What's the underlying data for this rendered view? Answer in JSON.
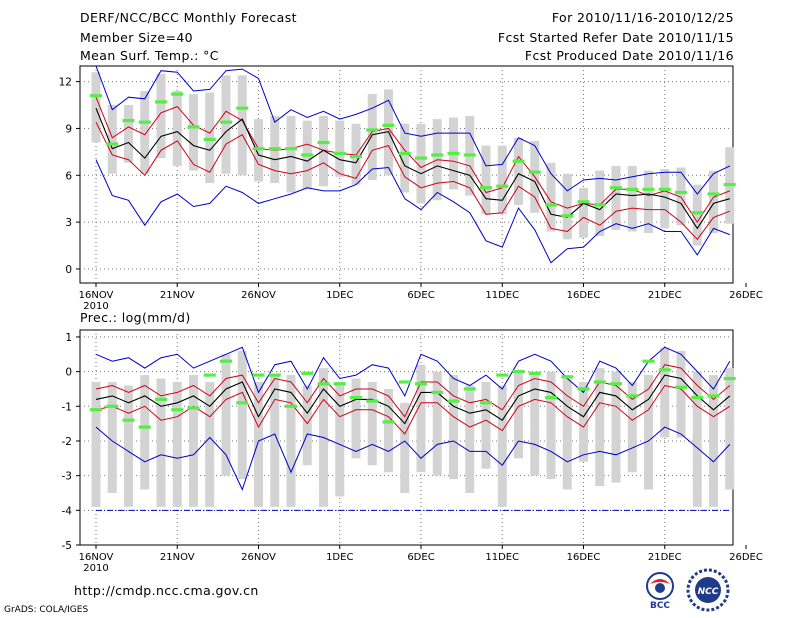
{
  "header": {
    "title": "DERF/NCC/BCC Monthly Forecast",
    "member_size": "Member Size=40",
    "variable": "Mean Surf. Temp.: °C",
    "forecast_period": "For 2010/11/16-2010/12/25",
    "started_refer_date": "Fcst Started Refer Date 2010/11/15",
    "produced_date": "Fcst Produced Date 2010/11/16"
  },
  "footer": {
    "url": "http://cmdp.ncc.cma.gov.cn",
    "grads_credit": "GrADS: COLA/IGES",
    "logo_left_text": "BCC",
    "logo_right_text": "NCC"
  },
  "colors": {
    "median": "#000000",
    "quartile": "#d0021b",
    "extreme": "#0000cc",
    "box": "#d3d3d3",
    "climatology": "#55ee44",
    "grid": "#777777"
  },
  "chart_data": [
    {
      "type": "box-ensemble",
      "title": "Mean Surf. Temp.: °C",
      "xlabel": "",
      "ylabel": "",
      "x_tick_labels": [
        "16NOV",
        "21NOV",
        "26NOV",
        "1DEC",
        "6DEC",
        "11DEC",
        "16DEC",
        "21DEC",
        "26DEC"
      ],
      "year_label": "2010",
      "ylim": [
        -0.9,
        13
      ],
      "y_ticks": [
        0,
        3,
        6,
        9,
        12
      ],
      "grid": true,
      "days": 40,
      "series": [
        {
          "name": "box_top",
          "values": [
            12.6,
            10.5,
            10.5,
            11.4,
            12.5,
            11.4,
            11.2,
            11.3,
            12.4,
            12.4,
            9.6,
            9.8,
            9.8,
            9.5,
            9.8,
            9.5,
            9.3,
            11.2,
            11.5,
            9.3,
            9.3,
            9.6,
            9.7,
            9.8,
            7.9,
            7.9,
            8.4,
            8.2,
            6.8,
            6.1,
            5.2,
            6.3,
            6.6,
            6.6,
            6.3,
            6.4,
            6.5,
            5.4,
            6.3,
            7.8
          ]
        },
        {
          "name": "box_bottom",
          "values": [
            8.1,
            6.1,
            6.8,
            6.1,
            7.1,
            6.6,
            6.3,
            5.5,
            6.1,
            6.0,
            5.6,
            5.5,
            4.9,
            5.1,
            5.3,
            5.9,
            5.4,
            5.7,
            6.0,
            4.9,
            4.2,
            4.4,
            5.1,
            4.7,
            3.5,
            3.5,
            4.1,
            3.6,
            2.4,
            1.9,
            2.0,
            2.1,
            2.5,
            2.4,
            2.3,
            2.6,
            2.8,
            1.5,
            2.3,
            2.9
          ]
        },
        {
          "name": "max",
          "values": [
            13.0,
            10.2,
            11.0,
            10.9,
            12.7,
            12.6,
            11.4,
            11.5,
            12.7,
            12.8,
            12.2,
            9.4,
            10.2,
            9.7,
            10.1,
            9.6,
            9.9,
            10.3,
            10.8,
            8.7,
            8.5,
            8.7,
            8.7,
            8.7,
            6.6,
            6.7,
            8.4,
            7.9,
            6.1,
            5.0,
            5.7,
            5.8,
            5.7,
            5.9,
            6.1,
            6.2,
            6.2,
            4.8,
            6.1,
            6.6
          ]
        },
        {
          "name": "upper_quartile",
          "values": [
            11.0,
            8.4,
            9.1,
            8.6,
            10.0,
            10.4,
            9.2,
            8.7,
            10.1,
            9.5,
            7.7,
            7.6,
            7.7,
            8.0,
            7.6,
            7.4,
            7.3,
            8.8,
            9.0,
            7.6,
            6.5,
            7.0,
            6.9,
            6.6,
            4.9,
            5.2,
            7.2,
            5.9,
            4.3,
            3.9,
            4.2,
            4.1,
            5.1,
            5.1,
            4.7,
            5.0,
            4.6,
            3.0,
            4.6,
            5.0
          ]
        },
        {
          "name": "median",
          "values": [
            10.3,
            7.7,
            8.1,
            7.1,
            8.5,
            8.8,
            7.9,
            7.6,
            8.8,
            9.6,
            7.3,
            7.0,
            7.2,
            6.9,
            7.6,
            7.0,
            6.8,
            8.6,
            8.8,
            6.6,
            6.1,
            6.6,
            6.3,
            6.0,
            4.5,
            4.4,
            6.1,
            5.6,
            3.5,
            3.3,
            4.2,
            3.8,
            4.8,
            4.7,
            4.8,
            4.6,
            4.2,
            2.6,
            4.2,
            4.5
          ]
        },
        {
          "name": "lower_quartile",
          "values": [
            9.4,
            7.3,
            7.0,
            6.0,
            7.6,
            8.2,
            6.7,
            6.2,
            8.0,
            8.6,
            6.7,
            6.3,
            6.1,
            6.3,
            6.8,
            6.1,
            5.8,
            7.6,
            7.9,
            5.9,
            5.2,
            5.5,
            5.6,
            5.2,
            3.5,
            3.6,
            5.3,
            4.6,
            2.6,
            2.4,
            3.3,
            2.8,
            3.7,
            3.9,
            3.8,
            3.8,
            3.0,
            1.9,
            3.3,
            3.7
          ]
        },
        {
          "name": "min",
          "values": [
            7.0,
            4.7,
            4.4,
            2.8,
            4.3,
            4.8,
            4.0,
            4.2,
            5.3,
            4.9,
            4.2,
            4.5,
            4.8,
            5.2,
            5.0,
            5.0,
            5.4,
            6.4,
            6.5,
            4.5,
            3.8,
            4.9,
            4.3,
            3.6,
            1.8,
            1.4,
            3.9,
            2.5,
            0.4,
            1.3,
            1.4,
            2.4,
            2.9,
            2.6,
            2.9,
            2.4,
            2.4,
            0.9,
            2.6,
            2.2
          ]
        },
        {
          "name": "climatology",
          "values": [
            11.1,
            8.0,
            9.5,
            9.4,
            10.7,
            11.2,
            9.1,
            8.3,
            9.4,
            10.3,
            7.7,
            7.7,
            7.7,
            7.3,
            8.1,
            7.4,
            7.2,
            8.9,
            9.2,
            7.4,
            7.1,
            7.3,
            7.4,
            7.3,
            5.2,
            5.3,
            6.9,
            6.2,
            4.1,
            3.4,
            4.3,
            4.1,
            5.2,
            5.1,
            5.1,
            5.1,
            4.9,
            3.6,
            4.8,
            5.4
          ]
        }
      ]
    },
    {
      "type": "box-ensemble",
      "title": "Prec.: log(mm/d)",
      "xlabel": "",
      "ylabel": "",
      "x_tick_labels": [
        "16NOV",
        "21NOV",
        "26NOV",
        "1DEC",
        "6DEC",
        "11DEC",
        "16DEC",
        "21DEC",
        "26DEC"
      ],
      "year_label": "2010",
      "ylim": [
        -5,
        1.2
      ],
      "y_ticks": [
        -5,
        -4,
        -3,
        -2,
        -1,
        0,
        1
      ],
      "baseline": -4,
      "grid": true,
      "days": 40,
      "series": [
        {
          "name": "box_top",
          "values": [
            -0.3,
            -0.3,
            -0.4,
            -0.1,
            -0.2,
            -0.3,
            -0.1,
            -0.3,
            0.5,
            0.6,
            -0.3,
            -0.1,
            -0.1,
            -0.4,
            0.1,
            -0.3,
            -0.2,
            -0.3,
            -0.5,
            -0.9,
            0.2,
            0.0,
            -0.1,
            -0.4,
            -0.3,
            -0.4,
            0.0,
            0.0,
            0.0,
            -0.1,
            -0.3,
            0.1,
            0.0,
            -0.3,
            -0.1,
            0.7,
            0.6,
            0.0,
            -0.1,
            0.1
          ]
        },
        {
          "name": "box_bottom",
          "values": [
            -3.9,
            -3.5,
            -3.9,
            -3.4,
            -3.9,
            -3.9,
            -3.9,
            -3.9,
            -3.0,
            -3.1,
            -3.9,
            -3.9,
            -3.9,
            -2.7,
            -3.9,
            -3.6,
            -2.5,
            -2.7,
            -2.9,
            -3.5,
            -2.9,
            -3.0,
            -3.1,
            -3.5,
            -2.8,
            -3.9,
            -2.5,
            -3.0,
            -3.1,
            -3.4,
            -2.6,
            -3.3,
            -3.2,
            -2.9,
            -3.4,
            -1.9,
            -1.9,
            -3.9,
            -3.9,
            -3.4
          ]
        },
        {
          "name": "max",
          "values": [
            0.5,
            0.3,
            0.4,
            0.1,
            0.4,
            0.5,
            0.1,
            0.3,
            0.5,
            0.7,
            -0.6,
            0.2,
            0.3,
            -0.5,
            0.4,
            -0.2,
            -0.1,
            0.2,
            0.1,
            -0.7,
            0.5,
            0.3,
            -0.2,
            -0.4,
            -0.1,
            -0.5,
            0.3,
            0.5,
            0.3,
            -0.2,
            -0.6,
            0.3,
            0.1,
            -0.4,
            0.3,
            0.7,
            0.5,
            0.0,
            -0.5,
            0.3
          ]
        },
        {
          "name": "upper_quartile",
          "values": [
            -0.5,
            -0.4,
            -0.6,
            -0.4,
            -0.7,
            -0.6,
            -0.4,
            -0.7,
            -0.2,
            -0.1,
            -0.9,
            -0.2,
            -0.3,
            -0.9,
            -0.2,
            -0.7,
            -0.5,
            -0.5,
            -0.7,
            -1.3,
            -0.3,
            -0.3,
            -0.7,
            -0.9,
            -0.8,
            -1.1,
            -0.4,
            -0.2,
            -0.3,
            -0.7,
            -1.0,
            -0.3,
            -0.4,
            -0.8,
            -0.5,
            0.2,
            0.1,
            -0.4,
            -0.8,
            -0.4
          ]
        },
        {
          "name": "median",
          "values": [
            -0.8,
            -0.7,
            -0.9,
            -0.7,
            -1.0,
            -0.9,
            -0.7,
            -1.0,
            -0.5,
            -0.3,
            -1.3,
            -0.5,
            -0.6,
            -1.2,
            -0.5,
            -1.0,
            -0.8,
            -0.8,
            -1.0,
            -1.5,
            -0.6,
            -0.6,
            -1.0,
            -1.2,
            -1.1,
            -1.4,
            -0.7,
            -0.5,
            -0.6,
            -1.0,
            -1.3,
            -0.6,
            -0.7,
            -1.1,
            -0.8,
            -0.1,
            -0.2,
            -0.7,
            -1.1,
            -0.7
          ]
        },
        {
          "name": "lower_quartile",
          "values": [
            -1.1,
            -1.0,
            -1.2,
            -1.0,
            -1.4,
            -1.3,
            -1.0,
            -1.3,
            -0.8,
            -0.6,
            -1.6,
            -0.8,
            -0.9,
            -1.5,
            -0.8,
            -1.3,
            -1.1,
            -1.1,
            -1.3,
            -1.8,
            -0.9,
            -0.9,
            -1.3,
            -1.6,
            -1.4,
            -1.7,
            -1.0,
            -0.8,
            -0.9,
            -1.3,
            -1.6,
            -0.9,
            -1.0,
            -1.4,
            -1.1,
            -0.4,
            -0.5,
            -1.0,
            -1.3,
            -1.0
          ]
        },
        {
          "name": "min",
          "values": [
            -1.6,
            -2.0,
            -2.3,
            -2.6,
            -2.4,
            -2.5,
            -2.4,
            -1.9,
            -2.4,
            -3.4,
            -2.0,
            -1.8,
            -2.9,
            -1.8,
            -1.9,
            -2.1,
            -2.3,
            -2.1,
            -2.3,
            -2.0,
            -2.5,
            -2.1,
            -2.0,
            -2.3,
            -2.3,
            -2.7,
            -2.0,
            -2.1,
            -2.3,
            -2.6,
            -2.4,
            -2.3,
            -2.4,
            -2.2,
            -2.0,
            -1.6,
            -1.8,
            -2.2,
            -2.6,
            -2.1
          ]
        },
        {
          "name": "climatology",
          "values": [
            -1.1,
            -1.0,
            -1.4,
            -1.6,
            -0.8,
            -1.1,
            -1.05,
            -0.1,
            0.3,
            -0.9,
            -0.1,
            -0.1,
            -1.0,
            -0.05,
            -0.35,
            -0.35,
            -0.75,
            -0.85,
            -1.45,
            -0.3,
            -0.35,
            -0.6,
            -0.85,
            -0.5,
            -0.9,
            -0.1,
            0.0,
            -0.05,
            -0.75,
            -0.15,
            -0.5,
            -0.3,
            -0.35,
            -0.7,
            0.3,
            0.05,
            -0.45,
            -0.75,
            -0.7,
            -0.2
          ]
        }
      ]
    }
  ]
}
